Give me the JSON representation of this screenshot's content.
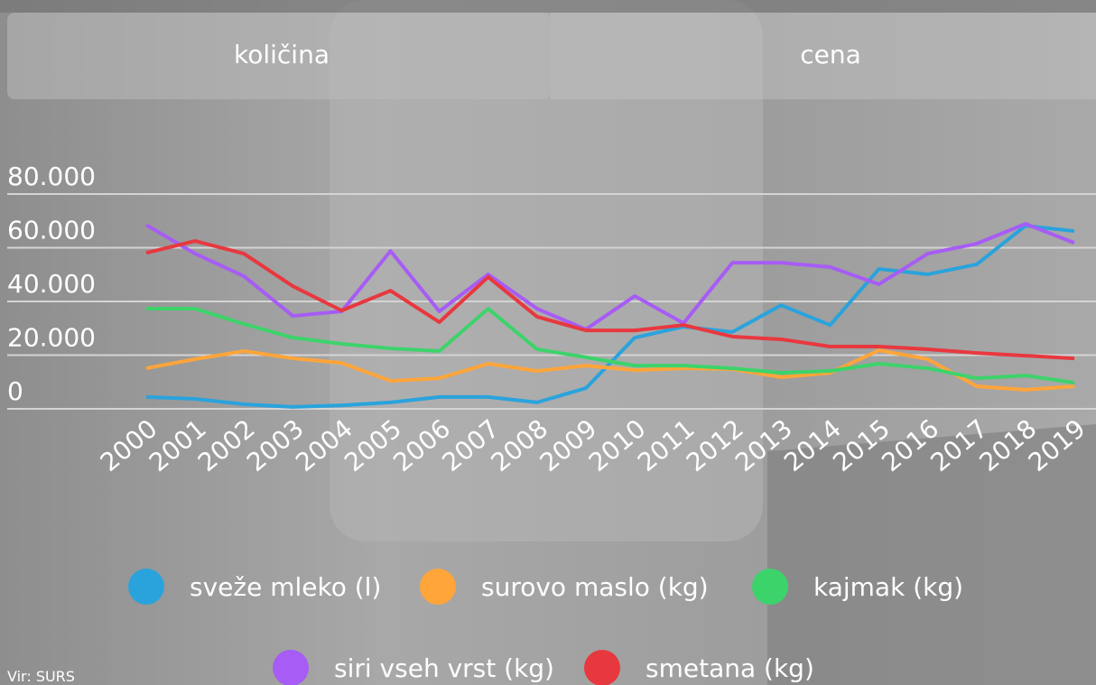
{
  "tabs": [
    "količina",
    "cena"
  ],
  "source": "Vir: SURS",
  "chart_data": {
    "type": "line",
    "categories": [
      "2000",
      "2001",
      "2002",
      "2003",
      "2004",
      "2005",
      "2006",
      "2007",
      "2008",
      "2009",
      "2010",
      "2011",
      "2012",
      "2013",
      "2014",
      "2015",
      "2016",
      "2017",
      "2018",
      "2019"
    ],
    "series": [
      {
        "name": "sveže mleko (l)",
        "color": "#2aa3dc",
        "values": [
          4400,
          3700,
          1700,
          700,
          1300,
          2400,
          4400,
          4400,
          2400,
          7700,
          26500,
          30600,
          28600,
          38600,
          31200,
          52100,
          50100,
          53800,
          68200,
          66200
        ]
      },
      {
        "name": "surovo maslo (kg)",
        "color": "#ffa53a",
        "values": [
          15100,
          18500,
          21500,
          18800,
          17100,
          10400,
          11400,
          16800,
          14100,
          16100,
          14400,
          15100,
          14800,
          11800,
          13400,
          21800,
          18500,
          8400,
          7100,
          8400
        ]
      },
      {
        "name": "kajmak (kg)",
        "color": "#3dd36b",
        "values": [
          37300,
          37300,
          31600,
          26500,
          24200,
          22500,
          21500,
          37300,
          22200,
          19200,
          16100,
          16100,
          15100,
          13400,
          14100,
          16800,
          15100,
          11400,
          12400,
          9700
        ]
      },
      {
        "name": "siri vseh vrst (kg)",
        "color": "#a75cf5",
        "values": [
          68500,
          57800,
          49400,
          34600,
          36300,
          58800,
          36300,
          50100,
          37300,
          29600,
          42000,
          31900,
          54400,
          54400,
          52800,
          46400,
          57800,
          61500,
          68900,
          61800
        ]
      },
      {
        "name": "smetana (kg)",
        "color": "#e8383f",
        "values": [
          58100,
          62500,
          57800,
          45700,
          36600,
          44000,
          32300,
          49100,
          34300,
          29200,
          29200,
          31200,
          26900,
          25900,
          23200,
          23200,
          22200,
          20800,
          19800,
          18800
        ]
      }
    ],
    "ylim": [
      0,
      80000
    ],
    "yticks": [
      0,
      {
        "value": 20000,
        "label": "20.000"
      },
      {
        "value": 40000,
        "label": "40.000"
      },
      {
        "value": 60000,
        "label": "60.000"
      },
      {
        "value": 80000,
        "label": "80.000"
      }
    ],
    "grid": true
  }
}
